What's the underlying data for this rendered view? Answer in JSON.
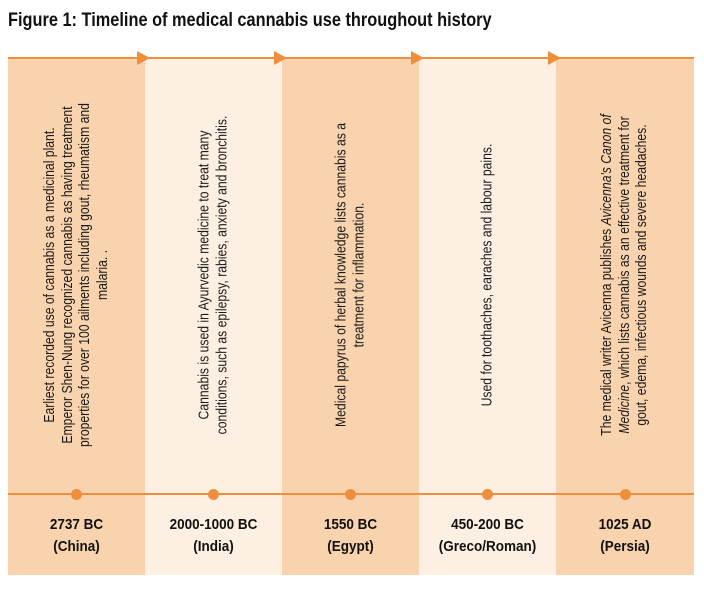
{
  "figure": {
    "title": "Figure 1: Timeline of medical cannabis use throughout history"
  },
  "colors": {
    "accent": "#ee8f3d",
    "dark_panel": "#f8d3ae",
    "light_panel": "#fdefe1"
  },
  "events": [
    {
      "description_html": "Earliest recorded use of cannabis as a medicinal plant. Emperor Shen-Nung recognized cannabis as having treatment properties for over 100 ailments including gout, rheumatism and malaria. .",
      "date": "2737 BC",
      "place": "(China)"
    },
    {
      "description_html": "Cannabis is used in Ayurvedic medicine to treat many conditions, such as epilepsy, rabies, anxiety and bronchitis.",
      "date": "2000-1000 BC",
      "place": "(India)"
    },
    {
      "description_html": "Medical papyrus of herbal knowledge lists cannabis as a treatment for inflammation.",
      "date": "1550 BC",
      "place": "(Egypt)"
    },
    {
      "description_html": "Used for toothaches, earaches and labour pains.",
      "date": "450-200 BC",
      "place": "(Greco/Roman)"
    },
    {
      "description_html": "The medical writer Avicenna publishes <i>Avicenna's Canon of Medicine</i>, which lists cannabis as an effective treatment for gout, edema, infectious wounds and severe headaches.",
      "date": "1025 AD",
      "place": "(Persia)"
    }
  ]
}
